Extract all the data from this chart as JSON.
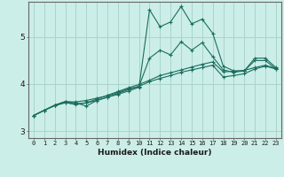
{
  "xlabel": "Humidex (Indice chaleur)",
  "background_color": "#cceee8",
  "grid_color": "#aad4cc",
  "line_color": "#1a6e5e",
  "xlim": [
    -0.5,
    23.5
  ],
  "ylim": [
    2.85,
    5.75
  ],
  "yticks": [
    3,
    4,
    5
  ],
  "xticks": [
    0,
    1,
    2,
    3,
    4,
    5,
    6,
    7,
    8,
    9,
    10,
    11,
    12,
    13,
    14,
    15,
    16,
    17,
    18,
    19,
    20,
    21,
    22,
    23
  ],
  "series": [
    [
      3.33,
      3.44,
      3.55,
      3.63,
      3.6,
      3.53,
      3.65,
      3.72,
      3.78,
      3.85,
      3.93,
      5.58,
      5.22,
      5.32,
      5.65,
      5.28,
      5.38,
      5.08,
      4.38,
      4.28,
      4.28,
      4.55,
      4.55,
      4.35
    ],
    [
      3.33,
      3.44,
      3.55,
      3.62,
      3.62,
      3.65,
      3.7,
      3.75,
      3.82,
      3.9,
      3.95,
      4.55,
      4.72,
      4.62,
      4.9,
      4.72,
      4.88,
      4.58,
      4.3,
      4.25,
      4.28,
      4.5,
      4.5,
      4.32
    ],
    [
      3.33,
      3.44,
      3.54,
      3.6,
      3.58,
      3.6,
      3.65,
      3.72,
      3.8,
      3.88,
      3.95,
      4.05,
      4.12,
      4.18,
      4.25,
      4.3,
      4.35,
      4.4,
      4.15,
      4.18,
      4.22,
      4.32,
      4.38,
      4.32
    ],
    [
      3.33,
      3.44,
      3.54,
      3.61,
      3.56,
      3.6,
      3.68,
      3.76,
      3.84,
      3.92,
      3.99,
      4.08,
      4.18,
      4.24,
      4.3,
      4.36,
      4.42,
      4.47,
      4.26,
      4.27,
      4.29,
      4.35,
      4.4,
      4.33
    ]
  ]
}
